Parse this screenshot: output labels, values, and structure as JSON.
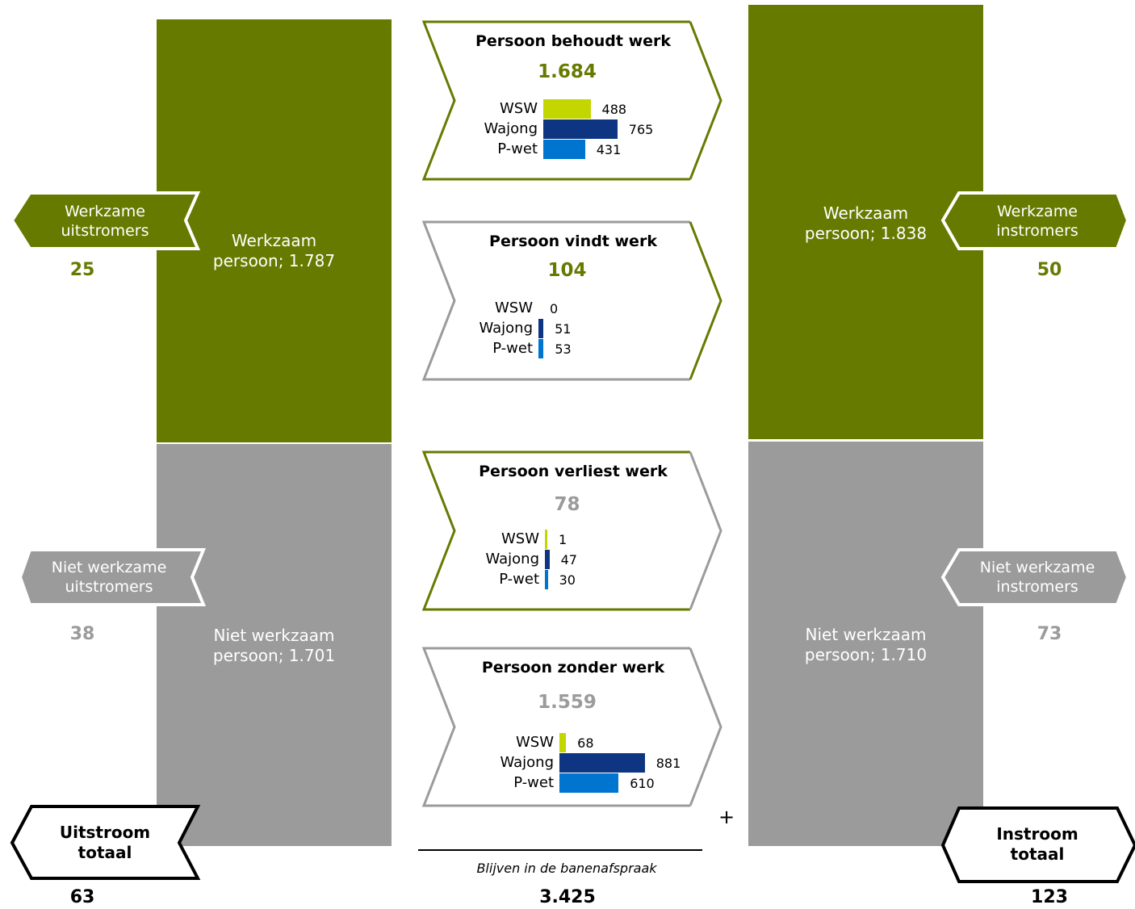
{
  "colors": {
    "olive": "#677a00",
    "grey": "#9b9b9b",
    "wsw": "#c3d600",
    "wajong": "#0e3581",
    "pwet": "#0075cf"
  },
  "left_blocks": {
    "top": {
      "label1": "Werkzaam",
      "label2": "persoon;  1.787"
    },
    "bottom": {
      "label1": "Niet werkzaam",
      "label2": "persoon;  1.701"
    }
  },
  "right_blocks": {
    "top": {
      "label1": "Werkzaam",
      "label2": "persoon;  1.838"
    },
    "bottom": {
      "label1": "Niet werkzaam",
      "label2": "persoon;  1.710"
    }
  },
  "outflow": {
    "working": {
      "label1": "Werkzame",
      "label2": "uitstromers",
      "value": "25"
    },
    "nonworking": {
      "label1": "Niet werkzame",
      "label2": "uitstromers",
      "value": "38"
    },
    "total": {
      "label1": "Uitstroom",
      "label2": "totaal",
      "value": "63"
    }
  },
  "inflow": {
    "working": {
      "label1": "Werkzame",
      "label2": "instromers",
      "value": "50"
    },
    "nonworking": {
      "label1": "Niet werkzame",
      "label2": "instromers",
      "value": "73"
    },
    "total": {
      "label1": "Instroom",
      "label2": "totaal",
      "value": "123"
    }
  },
  "cards": [
    {
      "title": "Persoon behoudt werk",
      "total": "1.684",
      "rows": [
        {
          "label": "WSW",
          "value": 488
        },
        {
          "label": "Wajong",
          "value": 765
        },
        {
          "label": "P-wet",
          "value": 431
        }
      ]
    },
    {
      "title": "Persoon vindt werk",
      "total": "104",
      "rows": [
        {
          "label": "WSW",
          "value": 0
        },
        {
          "label": "Wajong",
          "value": 51
        },
        {
          "label": "P-wet",
          "value": 53
        }
      ]
    },
    {
      "title": "Persoon verliest werk",
      "total": "78",
      "rows": [
        {
          "label": "WSW",
          "value": 1
        },
        {
          "label": "Wajong",
          "value": 47
        },
        {
          "label": "P-wet",
          "value": 30
        }
      ]
    },
    {
      "title": "Persoon zonder werk",
      "total": "1.559",
      "rows": [
        {
          "label": "WSW",
          "value": 68
        },
        {
          "label": "Wajong",
          "value": 881
        },
        {
          "label": "P-wet",
          "value": 610
        }
      ]
    }
  ],
  "remain": {
    "plus": "+",
    "label": "Blijven in de banenafspraak",
    "value": "3.425"
  }
}
